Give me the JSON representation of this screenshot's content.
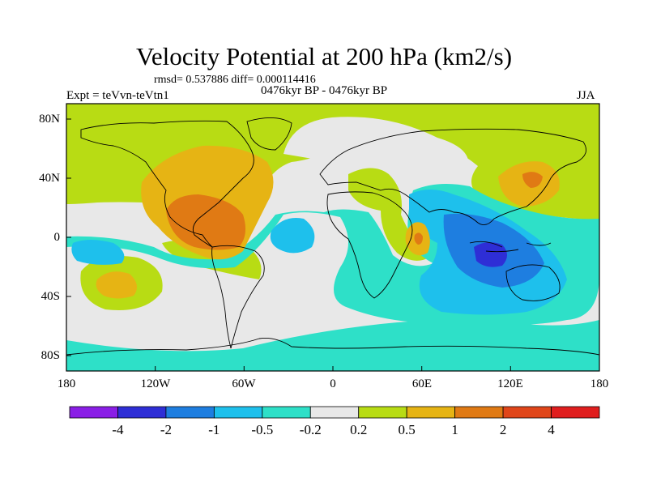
{
  "header": {
    "title": "Velocity Potential at 200 hPa (km2/s)",
    "stats": "rmsd= 0.537886 diff= 0.000114416",
    "expt": "Expt = teVvn-teVtn1",
    "period": "0476kyr BP - 0476kyr BP",
    "season": "JJA"
  },
  "chart_data": {
    "type": "heatmap",
    "title": "Velocity Potential at 200 hPa (km2/s)",
    "xlim": [
      -180,
      180
    ],
    "ylim": [
      -90,
      90
    ],
    "x_ticks": [
      "180",
      "120W",
      "60W",
      "0",
      "60E",
      "120E",
      "180"
    ],
    "y_ticks": [
      "80N",
      "40N",
      "0",
      "40S",
      "80S"
    ],
    "colorbar": {
      "levels": [
        "-4",
        "-2",
        "-1",
        "-0.5",
        "-0.2",
        "0.2",
        "0.5",
        "1",
        "2",
        "4"
      ],
      "colors": [
        "#8a1ee6",
        "#2e2ed6",
        "#1e7ee0",
        "#1ec0ec",
        "#2ee0c8",
        "#e8e8e8",
        "#b8dc14",
        "#e6b414",
        "#e07a14",
        "#e0461a",
        "#e01e1e"
      ]
    },
    "features": [
      {
        "name": "central america high",
        "level": "2 to 4",
        "lon": -100,
        "lat": 10
      },
      {
        "name": "north america ring",
        "level": "1 to 2",
        "lon": -100,
        "lat": 25
      },
      {
        "name": "east asia high",
        "level": "1 to 2",
        "lon": 135,
        "lat": 38
      },
      {
        "name": "arabian sea high",
        "level": "1 to 2",
        "lon": 62,
        "lat": 2
      },
      {
        "name": "south pacific high",
        "level": "1 to 2",
        "lon": -155,
        "lat": -25
      },
      {
        "name": "indonesia low",
        "level": "-2 to -4",
        "lon": 108,
        "lat": -8
      },
      {
        "name": "indian ocean low",
        "level": "-1 to -2",
        "lon": 90,
        "lat": -25
      },
      {
        "name": "equatorial atlantic low",
        "level": "-0.5 to -1",
        "lon": -35,
        "lat": -5
      }
    ]
  }
}
